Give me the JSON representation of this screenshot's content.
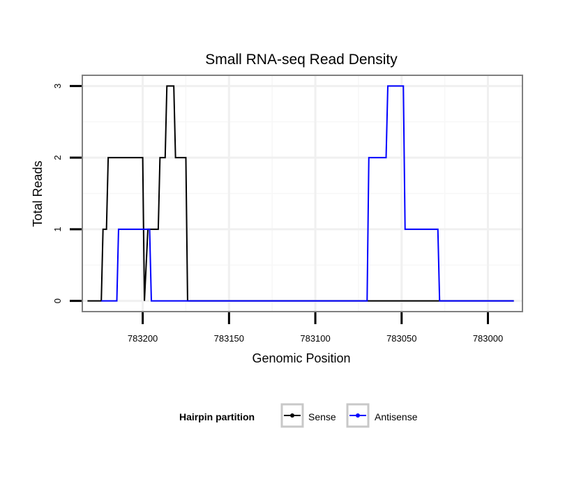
{
  "chart_data": {
    "type": "line",
    "title": "Small RNA-seq Read Density",
    "xlabel": "Genomic Position",
    "ylabel": "Total Reads",
    "x_reversed": true,
    "xlim": [
      783235,
      782980
    ],
    "ylim": [
      -0.15,
      3.15
    ],
    "x_ticks": [
      783200,
      783150,
      783100,
      783050,
      783000
    ],
    "x_tick_labels": [
      "783200",
      "783150",
      "783100",
      "783050",
      "783000"
    ],
    "y_ticks": [
      0,
      1,
      2,
      3
    ],
    "y_tick_labels": [
      "0",
      "1",
      "2",
      "3"
    ],
    "grid": true,
    "legend": {
      "title": "Hairpin partition",
      "position": "bottom",
      "entries": [
        {
          "label": "Sense",
          "color": "#000000"
        },
        {
          "label": "Antisense",
          "color": "#0000ff"
        }
      ]
    },
    "series": [
      {
        "name": "Sense",
        "color": "#000000",
        "x": [
          783232,
          783224,
          783223,
          783221,
          783220,
          783200,
          783199,
          783197,
          783196,
          783191,
          783190,
          783187,
          783186,
          783182,
          783181,
          783175,
          783174,
          783170,
          783169,
          782985
        ],
        "y": [
          0,
          0,
          1,
          1,
          2,
          2,
          0,
          1,
          1,
          1,
          2,
          2,
          3,
          3,
          2,
          2,
          0,
          0,
          0,
          0
        ]
      },
      {
        "name": "Antisense",
        "color": "#0000ff",
        "x": [
          783224,
          783215,
          783214,
          783196,
          783195,
          783170,
          783070,
          783069,
          783059,
          783058,
          783049,
          783048,
          783029,
          783028,
          782985
        ],
        "y": [
          0,
          0,
          1,
          1,
          0,
          0,
          0,
          2,
          2,
          3,
          3,
          1,
          1,
          0,
          0
        ]
      }
    ]
  }
}
